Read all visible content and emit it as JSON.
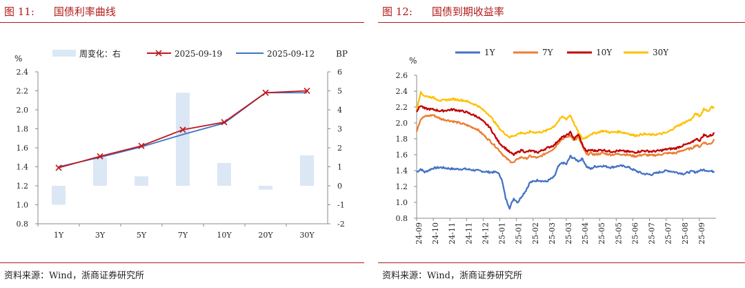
{
  "left": {
    "figure_no": "图 11:",
    "figure_title": "国债利率曲线",
    "source": "资料来源：Wind，浙商证券研究所",
    "chart_data": {
      "type": "bar+line",
      "title": "国债利率曲线",
      "categories": [
        "1Y",
        "3Y",
        "5Y",
        "7Y",
        "10Y",
        "20Y",
        "30Y"
      ],
      "y_left_label": "%",
      "y_right_label": "BP",
      "y_left_ticks": [
        "2.4",
        "2.2",
        "2.0",
        "1.8",
        "1.6",
        "1.4",
        "1.2",
        "1.0",
        "0.8"
      ],
      "y_right_ticks": [
        "6",
        "5",
        "4",
        "3",
        "2",
        "1",
        "0",
        "-1",
        "-2"
      ],
      "ylim_left": [
        0.8,
        2.4
      ],
      "ylim_right": [
        -2,
        6
      ],
      "legend": {
        "bar": "周变化：右",
        "line1": "2025-09-19",
        "line2": "2025-09-12"
      },
      "series": [
        {
          "name": "周变化：右",
          "type": "bar",
          "axis": "right",
          "color": "#dbe7f5",
          "values": [
            -1.0,
            1.5,
            0.5,
            4.9,
            1.2,
            -0.2,
            1.6
          ]
        },
        {
          "name": "2025-09-19",
          "type": "line",
          "axis": "left",
          "color": "#c0181f",
          "marker": "x",
          "values": [
            1.39,
            1.51,
            1.62,
            1.79,
            1.87,
            2.18,
            2.2
          ]
        },
        {
          "name": "2025-09-12",
          "type": "line",
          "axis": "left",
          "color": "#3e74c2",
          "values": [
            1.4,
            1.5,
            1.61,
            1.74,
            1.86,
            2.18,
            2.18
          ]
        }
      ]
    }
  },
  "right": {
    "figure_no": "图 12:",
    "figure_title": "国债到期收益率",
    "source": "资料来源：Wind，浙商证券研究所",
    "chart_data": {
      "type": "line",
      "title": "国债到期收益率",
      "y_label": "%",
      "y_ticks": [
        "2.6",
        "2.4",
        "2.2",
        "2.0",
        "1.8",
        "1.6",
        "1.4",
        "1.2",
        "1.0",
        "0.8"
      ],
      "ylim": [
        0.8,
        2.6
      ],
      "x_ticks": [
        "24-09",
        "24-10",
        "24-11",
        "24-11",
        "24-12",
        "25-01",
        "25-01",
        "25-02",
        "25-03",
        "25-03",
        "25-04",
        "25-05",
        "25-05",
        "25-06",
        "25-07",
        "25-07",
        "25-08",
        "25-09"
      ],
      "x_range": [
        0,
        370
      ],
      "anchors_x": [
        0,
        5,
        10,
        20,
        30,
        45,
        60,
        75,
        90,
        100,
        105,
        110,
        115,
        120,
        125,
        130,
        135,
        140,
        150,
        160,
        170,
        175,
        180,
        185,
        190,
        195,
        200,
        205,
        210,
        215,
        220,
        230,
        240,
        250,
        260,
        270,
        280,
        290,
        300,
        310,
        320,
        330,
        340,
        345,
        350,
        355,
        360,
        365,
        368
      ],
      "series": [
        {
          "name": "1Y",
          "color": "#4472c4",
          "anchors": [
            1.38,
            1.42,
            1.38,
            1.43,
            1.44,
            1.42,
            1.42,
            1.4,
            1.38,
            1.38,
            1.3,
            1.05,
            0.93,
            1.05,
            1.0,
            1.08,
            1.15,
            1.25,
            1.28,
            1.26,
            1.32,
            1.45,
            1.5,
            1.48,
            1.58,
            1.55,
            1.52,
            1.55,
            1.45,
            1.42,
            1.45,
            1.46,
            1.44,
            1.46,
            1.45,
            1.4,
            1.36,
            1.35,
            1.38,
            1.4,
            1.38,
            1.36,
            1.39,
            1.38,
            1.4,
            1.41,
            1.4,
            1.39,
            1.39
          ]
        },
        {
          "name": "7Y",
          "color": "#ed7d31",
          "anchors": [
            1.9,
            2.05,
            2.08,
            2.1,
            2.05,
            2.02,
            1.98,
            1.92,
            1.78,
            1.68,
            1.62,
            1.56,
            1.52,
            1.5,
            1.55,
            1.57,
            1.55,
            1.58,
            1.56,
            1.62,
            1.68,
            1.75,
            1.8,
            1.82,
            1.84,
            1.78,
            1.82,
            1.7,
            1.6,
            1.62,
            1.6,
            1.62,
            1.6,
            1.61,
            1.6,
            1.58,
            1.6,
            1.59,
            1.6,
            1.62,
            1.62,
            1.66,
            1.68,
            1.72,
            1.7,
            1.76,
            1.73,
            1.75,
            1.8
          ]
        },
        {
          "name": "10Y",
          "color": "#c00000",
          "anchors": [
            2.15,
            2.22,
            2.18,
            2.17,
            2.15,
            2.17,
            2.14,
            2.08,
            1.95,
            1.78,
            1.72,
            1.68,
            1.63,
            1.6,
            1.63,
            1.66,
            1.63,
            1.65,
            1.63,
            1.68,
            1.72,
            1.78,
            1.82,
            1.84,
            1.88,
            1.8,
            1.86,
            1.72,
            1.64,
            1.66,
            1.65,
            1.66,
            1.64,
            1.65,
            1.64,
            1.63,
            1.65,
            1.64,
            1.65,
            1.67,
            1.68,
            1.72,
            1.75,
            1.8,
            1.78,
            1.85,
            1.83,
            1.85,
            1.87
          ]
        },
        {
          "name": "30Y",
          "color": "#ffc000",
          "anchors": [
            2.18,
            2.38,
            2.34,
            2.32,
            2.28,
            2.3,
            2.28,
            2.22,
            2.1,
            1.96,
            1.9,
            1.86,
            1.82,
            1.84,
            1.86,
            1.88,
            1.86,
            1.89,
            1.88,
            1.9,
            1.96,
            2.02,
            2.08,
            2.05,
            2.1,
            1.98,
            1.88,
            1.8,
            1.82,
            1.86,
            1.87,
            1.9,
            1.88,
            1.89,
            1.87,
            1.84,
            1.86,
            1.85,
            1.86,
            1.88,
            1.95,
            2.0,
            2.05,
            2.12,
            2.08,
            2.18,
            2.15,
            2.2,
            2.2
          ]
        }
      ]
    }
  }
}
